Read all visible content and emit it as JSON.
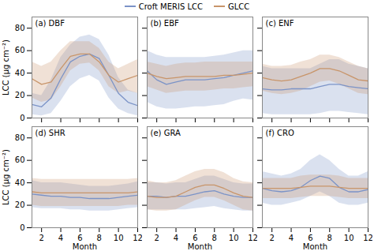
{
  "chart_data": [
    {
      "type": "line",
      "title": "(a) DBF",
      "x": [
        1,
        2,
        3,
        4,
        5,
        6,
        7,
        8,
        9,
        10,
        11,
        12
      ],
      "xlim": [
        1,
        12
      ],
      "xticks": [
        2,
        4,
        6,
        8,
        10,
        12
      ],
      "ylim": [
        0,
        90
      ],
      "yticks": [
        0,
        20,
        40,
        60,
        80
      ],
      "ylabel": "LCC (μg cm⁻²)",
      "tick_labels": "y",
      "legend": "top",
      "series": [
        {
          "name": "Croft MERIS LCC",
          "color": "#7b93c7",
          "values": [
            12,
            10,
            18,
            35,
            50,
            55,
            57,
            53,
            38,
            22,
            14,
            11
          ],
          "low": [
            3,
            2,
            4,
            15,
            28,
            35,
            38,
            33,
            18,
            8,
            4,
            2
          ],
          "high": [
            22,
            20,
            34,
            54,
            65,
            72,
            74,
            70,
            56,
            36,
            25,
            22
          ]
        },
        {
          "name": "GLCC",
          "color": "#c8956a",
          "values": [
            35,
            30,
            32,
            44,
            55,
            57,
            57,
            50,
            38,
            32,
            35,
            38
          ],
          "low": [
            18,
            14,
            16,
            28,
            42,
            48,
            49,
            42,
            28,
            22,
            24,
            22
          ],
          "high": [
            50,
            46,
            50,
            60,
            68,
            68,
            68,
            62,
            50,
            44,
            48,
            52
          ]
        }
      ]
    },
    {
      "type": "line",
      "title": "(b) EBF",
      "x": [
        1,
        2,
        3,
        4,
        5,
        6,
        7,
        8,
        9,
        10,
        11,
        12
      ],
      "xlim": [
        1,
        12
      ],
      "xticks": [
        2,
        4,
        6,
        8,
        10,
        12
      ],
      "ylim": [
        0,
        90
      ],
      "yticks": [
        0,
        20,
        40,
        60,
        80
      ],
      "tick_labels": false,
      "series": [
        {
          "name": "Croft MERIS LCC",
          "color": "#7b93c7",
          "values": [
            42,
            34,
            30,
            32,
            34,
            34,
            34,
            35,
            36,
            38,
            40,
            42
          ],
          "low": [
            14,
            10,
            8,
            8,
            9,
            10,
            10,
            11,
            12,
            15,
            17,
            16
          ],
          "high": [
            60,
            56,
            54,
            54,
            54,
            54,
            54,
            55,
            56,
            58,
            60,
            60
          ]
        },
        {
          "name": "GLCC",
          "color": "#c8956a",
          "values": [
            40,
            37,
            35,
            36,
            37,
            37,
            37,
            37,
            38,
            38,
            39,
            40
          ],
          "low": [
            28,
            25,
            22,
            23,
            24,
            24,
            24,
            25,
            26,
            26,
            27,
            28
          ],
          "high": [
            50,
            48,
            46,
            48,
            49,
            49,
            50,
            50,
            50,
            50,
            50,
            50
          ]
        }
      ]
    },
    {
      "type": "line",
      "title": "(c) ENF",
      "x": [
        1,
        2,
        3,
        4,
        5,
        6,
        7,
        8,
        9,
        10,
        11,
        12
      ],
      "xlim": [
        1,
        12
      ],
      "xticks": [
        2,
        4,
        6,
        8,
        10,
        12
      ],
      "ylim": [
        0,
        90
      ],
      "yticks": [
        0,
        20,
        40,
        60,
        80
      ],
      "tick_labels": false,
      "series": [
        {
          "name": "Croft MERIS LCC",
          "color": "#7b93c7",
          "values": [
            26,
            25,
            25,
            26,
            26,
            26,
            28,
            30,
            30,
            28,
            27,
            26
          ],
          "low": [
            4,
            3,
            3,
            3,
            3,
            3,
            4,
            6,
            6,
            5,
            4,
            3
          ],
          "high": [
            46,
            44,
            44,
            44,
            44,
            44,
            48,
            52,
            52,
            48,
            46,
            44
          ]
        },
        {
          "name": "GLCC",
          "color": "#c8956a",
          "values": [
            36,
            34,
            33,
            34,
            37,
            40,
            44,
            44,
            42,
            38,
            34,
            33
          ],
          "low": [
            24,
            22,
            21,
            22,
            24,
            28,
            32,
            33,
            30,
            26,
            22,
            21
          ],
          "high": [
            48,
            46,
            46,
            47,
            50,
            52,
            56,
            56,
            54,
            50,
            46,
            44
          ]
        }
      ]
    },
    {
      "type": "line",
      "title": "(d) SHR",
      "x": [
        1,
        2,
        3,
        4,
        5,
        6,
        7,
        8,
        9,
        10,
        11,
        12
      ],
      "xlim": [
        1,
        12
      ],
      "xticks": [
        2,
        4,
        6,
        8,
        10,
        12
      ],
      "ylim": [
        0,
        90
      ],
      "yticks": [
        0,
        20,
        40,
        60,
        80
      ],
      "xlabel": "Month",
      "ylabel": "LCC (μg cm⁻²)",
      "series": [
        {
          "name": "Croft MERIS LCC",
          "color": "#7b93c7",
          "values": [
            30,
            29,
            28,
            28,
            27,
            27,
            26,
            26,
            26,
            27,
            28,
            29
          ],
          "low": [
            18,
            17,
            17,
            17,
            16,
            16,
            15,
            15,
            15,
            16,
            17,
            18
          ],
          "high": [
            42,
            40,
            40,
            40,
            39,
            38,
            37,
            37,
            37,
            38,
            39,
            41
          ]
        },
        {
          "name": "GLCC",
          "color": "#c8956a",
          "values": [
            32,
            31,
            31,
            31,
            31,
            31,
            31,
            31,
            31,
            31,
            31,
            32
          ],
          "low": [
            20,
            19,
            19,
            19,
            19,
            19,
            19,
            19,
            19,
            19,
            20,
            20
          ],
          "high": [
            44,
            43,
            43,
            43,
            43,
            43,
            43,
            43,
            43,
            43,
            43,
            44
          ]
        }
      ]
    },
    {
      "type": "line",
      "title": "(e) GRA",
      "x": [
        1,
        2,
        3,
        4,
        5,
        6,
        7,
        8,
        9,
        10,
        11,
        12
      ],
      "xlim": [
        1,
        12
      ],
      "xticks": [
        2,
        4,
        6,
        8,
        10,
        12
      ],
      "ylim": [
        0,
        90
      ],
      "yticks": [
        0,
        20,
        40,
        60,
        80
      ],
      "xlabel": "Month",
      "tick_labels": "x",
      "series": [
        {
          "name": "Croft MERIS LCC",
          "color": "#7b93c7",
          "values": [
            28,
            28,
            27,
            28,
            28,
            30,
            32,
            33,
            30,
            28,
            27,
            27
          ],
          "low": [
            16,
            16,
            16,
            16,
            16,
            17,
            18,
            19,
            17,
            16,
            15,
            15
          ],
          "high": [
            40,
            40,
            39,
            40,
            40,
            43,
            46,
            46,
            43,
            40,
            39,
            39
          ]
        },
        {
          "name": "GLCC",
          "color": "#c8956a",
          "values": [
            28,
            27,
            27,
            28,
            32,
            36,
            38,
            38,
            35,
            31,
            28,
            27
          ],
          "low": [
            16,
            15,
            15,
            16,
            20,
            24,
            27,
            27,
            24,
            20,
            16,
            15
          ],
          "high": [
            42,
            40,
            40,
            42,
            46,
            50,
            52,
            52,
            49,
            44,
            41,
            40
          ]
        }
      ]
    },
    {
      "type": "line",
      "title": "(f) CRO",
      "x": [
        1,
        2,
        3,
        4,
        5,
        6,
        7,
        8,
        9,
        10,
        11,
        12
      ],
      "xlim": [
        1,
        12
      ],
      "xticks": [
        2,
        4,
        6,
        8,
        10,
        12
      ],
      "ylim": [
        0,
        90
      ],
      "yticks": [
        0,
        20,
        40,
        60,
        80
      ],
      "xlabel": "Month",
      "tick_labels": "x",
      "series": [
        {
          "name": "Croft MERIS LCC",
          "color": "#7b93c7",
          "values": [
            35,
            33,
            32,
            33,
            36,
            42,
            46,
            44,
            36,
            32,
            32,
            34
          ],
          "low": [
            22,
            20,
            20,
            22,
            24,
            28,
            32,
            28,
            22,
            20,
            20,
            22
          ],
          "high": [
            50,
            48,
            46,
            48,
            52,
            60,
            65,
            60,
            52,
            46,
            46,
            50
          ]
        },
        {
          "name": "GLCC",
          "color": "#c8956a",
          "values": [
            35,
            35,
            35,
            35,
            36,
            37,
            37,
            37,
            36,
            35,
            35,
            35
          ],
          "low": [
            26,
            26,
            26,
            26,
            27,
            28,
            28,
            28,
            27,
            26,
            26,
            26
          ],
          "high": [
            44,
            44,
            44,
            44,
            46,
            47,
            47,
            47,
            46,
            44,
            44,
            44
          ]
        }
      ]
    }
  ]
}
